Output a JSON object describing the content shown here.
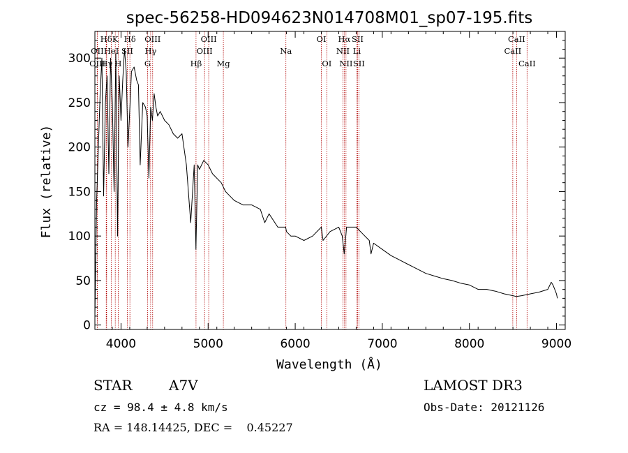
{
  "chart_data": {
    "type": "line",
    "title": "spec-56258-HD094623N014708M01_sp07-195.fits",
    "xlabel": "Wavelength (Å)",
    "ylabel": "Flux (relative)",
    "xlim": [
      3700,
      9100
    ],
    "ylim": [
      -5,
      330
    ],
    "x_ticks": [
      4000,
      5000,
      6000,
      7000,
      8000,
      9000
    ],
    "y_ticks": [
      0,
      50,
      100,
      150,
      200,
      250,
      300
    ],
    "series": [
      {
        "name": "flux",
        "x": [
          3700,
          3720,
          3740,
          3760,
          3780,
          3800,
          3820,
          3840,
          3860,
          3880,
          3900,
          3920,
          3940,
          3960,
          3980,
          4000,
          4020,
          4040,
          4060,
          4080,
          4100,
          4120,
          4150,
          4180,
          4200,
          4220,
          4250,
          4280,
          4300,
          4320,
          4340,
          4360,
          4380,
          4400,
          4420,
          4450,
          4500,
          4550,
          4600,
          4650,
          4700,
          4750,
          4800,
          4840,
          4860,
          4880,
          4900,
          4950,
          5000,
          5050,
          5100,
          5150,
          5200,
          5250,
          5300,
          5400,
          5500,
          5600,
          5650,
          5700,
          5800,
          5890,
          5900,
          5950,
          6000,
          6100,
          6200,
          6300,
          6320,
          6400,
          6500,
          6540,
          6563,
          6590,
          6650,
          6700,
          6750,
          6800,
          6850,
          6870,
          6900,
          7000,
          7100,
          7200,
          7300,
          7400,
          7500,
          7600,
          7700,
          7800,
          7900,
          8000,
          8100,
          8200,
          8300,
          8400,
          8500,
          8540,
          8600,
          8700,
          8800,
          8900,
          8940,
          8960,
          8980,
          9000,
          9010
        ],
        "y": [
          10,
          140,
          200,
          260,
          300,
          145,
          250,
          280,
          170,
          300,
          250,
          150,
          305,
          100,
          280,
          230,
          275,
          310,
          285,
          200,
          240,
          285,
          290,
          275,
          270,
          180,
          250,
          245,
          235,
          165,
          245,
          230,
          260,
          245,
          235,
          240,
          230,
          225,
          215,
          210,
          215,
          180,
          115,
          180,
          85,
          180,
          175,
          185,
          180,
          170,
          165,
          160,
          150,
          145,
          140,
          135,
          135,
          130,
          115,
          125,
          110,
          110,
          105,
          100,
          100,
          95,
          100,
          110,
          95,
          105,
          110,
          100,
          80,
          110,
          110,
          110,
          105,
          100,
          95,
          80,
          92,
          85,
          78,
          73,
          68,
          63,
          58,
          55,
          52,
          50,
          47,
          45,
          40,
          40,
          38,
          35,
          33,
          32,
          33,
          35,
          37,
          40,
          48,
          45,
          40,
          35,
          30
        ]
      }
    ],
    "line_markers": [
      {
        "label": "Hδ",
        "wavelength": 3830,
        "row": 1
      },
      {
        "label": "OII",
        "wavelength": 3727,
        "row": 2
      },
      {
        "label": "OIII",
        "wavelength": 3729,
        "row": 3
      },
      {
        "label": "K",
        "wavelength": 3934,
        "row": 1
      },
      {
        "label": "HeI",
        "wavelength": 3889,
        "row": 2
      },
      {
        "label": "Hγ",
        "wavelength": 3835,
        "row": 3
      },
      {
        "label": "SII",
        "wavelength": 4072,
        "row": 2
      },
      {
        "label": "H",
        "wavelength": 3968,
        "row": 3
      },
      {
        "label": "Hδ",
        "wavelength": 4102,
        "row": 1
      },
      {
        "label": "OIII",
        "wavelength": 4363,
        "row": 1
      },
      {
        "label": "Hγ",
        "wavelength": 4340,
        "row": 2
      },
      {
        "label": "G",
        "wavelength": 4305,
        "row": 3
      },
      {
        "label": "OIII",
        "wavelength": 5007,
        "row": 1
      },
      {
        "label": "OIII",
        "wavelength": 4959,
        "row": 2
      },
      {
        "label": "Hβ",
        "wavelength": 4861,
        "row": 3
      },
      {
        "label": "Mg",
        "wavelength": 5175,
        "row": 3
      },
      {
        "label": "Na",
        "wavelength": 5893,
        "row": 2
      },
      {
        "label": "OI",
        "wavelength": 6300,
        "row": 1
      },
      {
        "label": "OI",
        "wavelength": 6363,
        "row": 3
      },
      {
        "label": "Hα",
        "wavelength": 6563,
        "row": 1
      },
      {
        "label": "SII",
        "wavelength": 6716,
        "row": 1
      },
      {
        "label": "NII",
        "wavelength": 6548,
        "row": 2
      },
      {
        "label": "Li",
        "wavelength": 6708,
        "row": 2
      },
      {
        "label": "NII",
        "wavelength": 6583,
        "row": 3
      },
      {
        "label": "SII",
        "wavelength": 6731,
        "row": 3
      },
      {
        "label": "CaII",
        "wavelength": 8542,
        "row": 1
      },
      {
        "label": "CaII",
        "wavelength": 8498,
        "row": 2
      },
      {
        "label": "CaII",
        "wavelength": 8662,
        "row": 3
      }
    ],
    "colors": {
      "axes": "#000000",
      "flux": "#000000",
      "markers": "#b00000"
    }
  },
  "info": {
    "class": "STAR",
    "subclass": "A7V",
    "survey": "LAMOST DR3",
    "cz": "cz = 98.4 ± 4.8 km/s",
    "obs_date": "Obs-Date: 20121126",
    "radec": "RA = 148.14425, DEC =    0.45227"
  }
}
